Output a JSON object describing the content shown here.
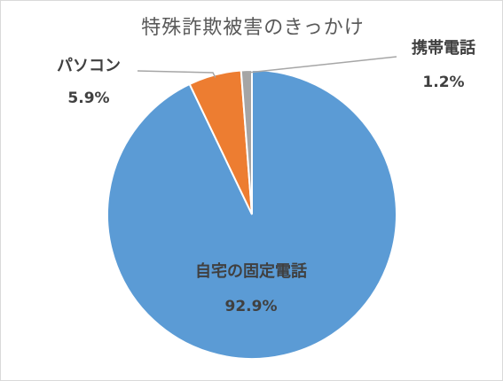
{
  "chart_data": {
    "type": "pie",
    "title": "特殊詐欺被害のきっかけ",
    "categories": [
      "自宅の固定電話",
      "パソコン",
      "携帯電話"
    ],
    "values": [
      92.9,
      5.9,
      1.2
    ],
    "value_labels": [
      "92.9%",
      "5.9%",
      "1.2%"
    ],
    "colors": [
      "#5b9bd5",
      "#ed7d31",
      "#a5a5a5"
    ]
  }
}
